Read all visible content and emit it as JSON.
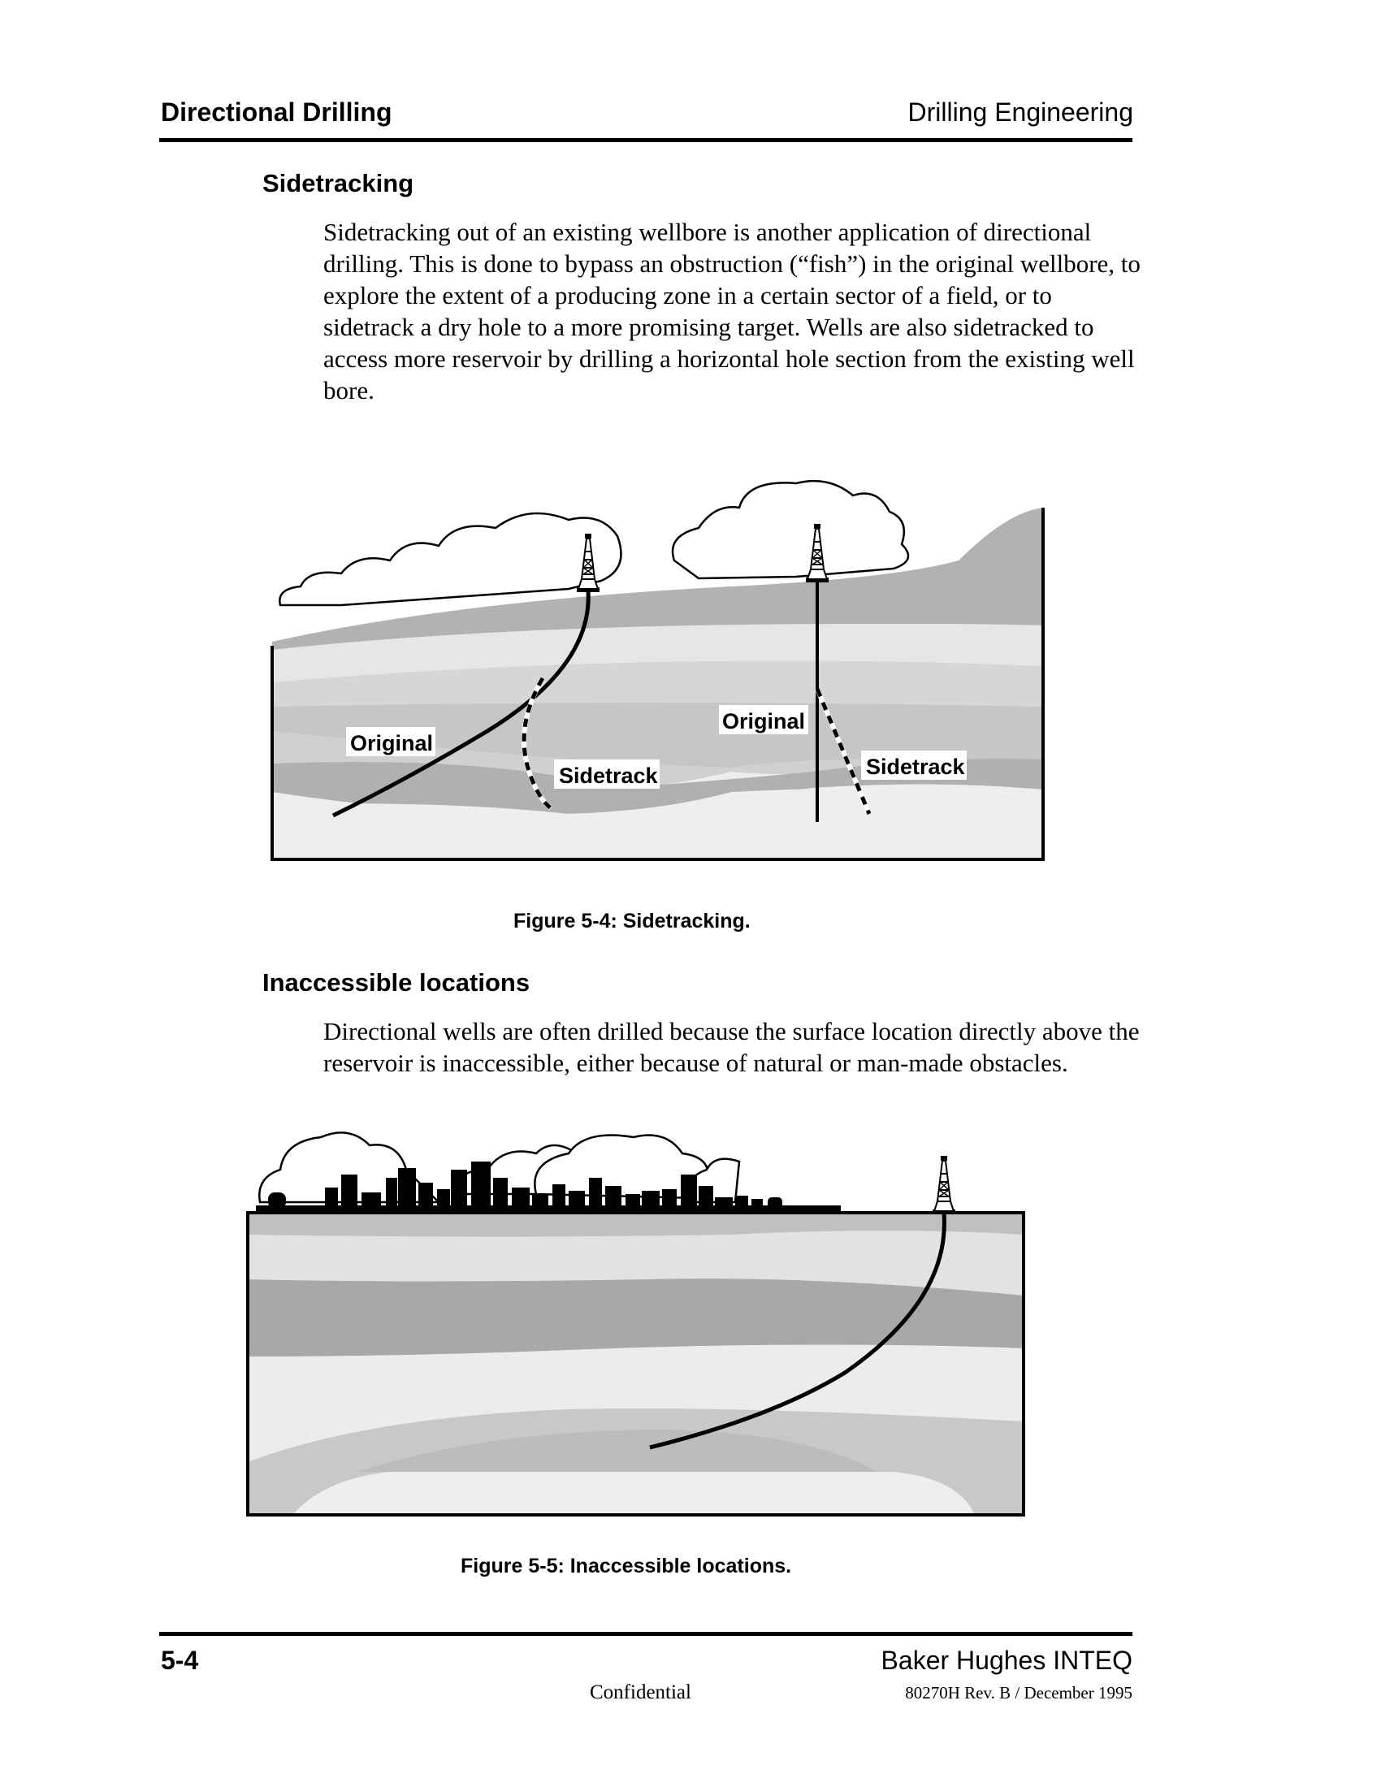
{
  "header": {
    "left": "Directional Drilling",
    "right": "Drilling Engineering"
  },
  "sections": {
    "sidetracking": {
      "heading": "Sidetracking",
      "paragraph": "Sidetracking out of an existing wellbore is another application of directional drilling. This is done to bypass an obstruction (“fish”) in the original wellbore, to explore the extent of a producing zone in a certain sector of a field, or to sidetrack a dry hole to a more promising target. Wells are also sidetracked to access more reservoir by drilling a horizontal hole section from the existing well bore."
    },
    "inaccessible": {
      "heading": "Inaccessible locations",
      "paragraph": "Directional wells are often drilled because the surface location directly above the reservoir is inaccessible, either because of natural or man-made obstacles."
    }
  },
  "figures": {
    "fig4": {
      "caption": "Figure 5-4: Sidetracking.",
      "labels": {
        "original_left": "Original",
        "sidetrack_left": "Sidetrack",
        "original_right": "Original",
        "sidetrack_right": "Sidetrack"
      }
    },
    "fig5": {
      "caption": "Figure 5-5: Inaccessible locations."
    }
  },
  "footer": {
    "page_number": "5-4",
    "company": "Baker Hughes INTEQ",
    "confidential": "Confidential",
    "doc_ref": "80270H Rev. B / December 1995"
  },
  "colors": {
    "text": "#000000",
    "layer_light": "#eeeeee",
    "layer_mid": "#d6d6d6",
    "layer_dark": "#b2b2b2"
  },
  "icons": [
    "drilling-rig-icon",
    "cloud-icon",
    "city-skyline-icon"
  ]
}
